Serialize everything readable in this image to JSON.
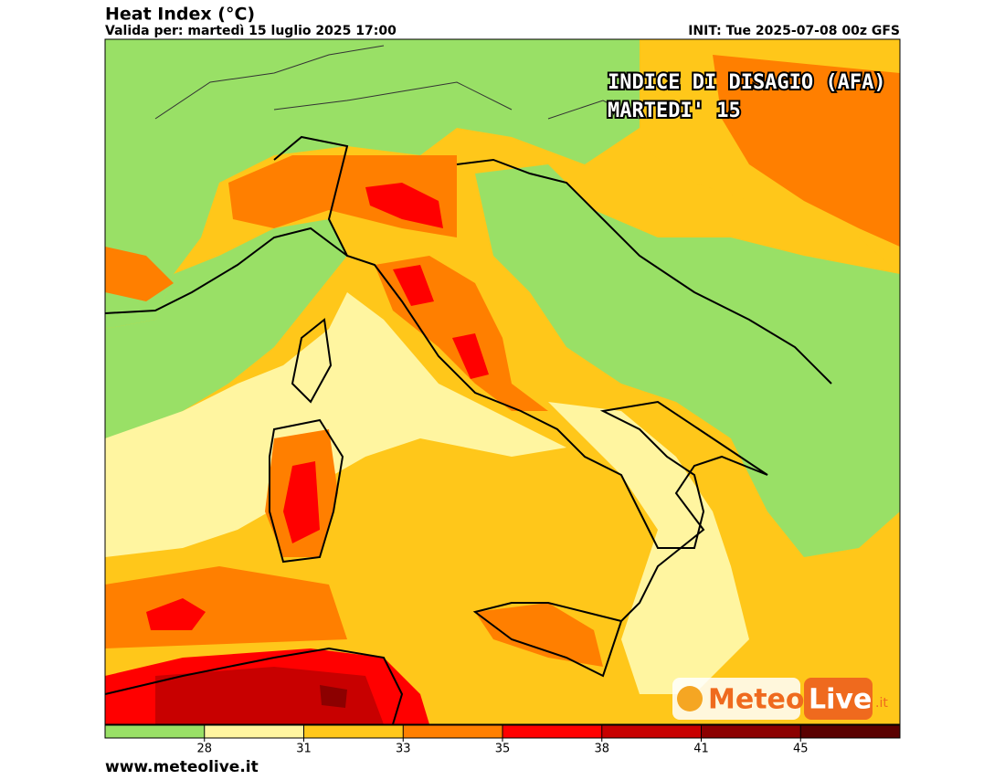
{
  "header": {
    "title": "Heat Index (°C)",
    "valid": "Valida per: martedì 15 luglio 2025 17:00",
    "init": "INIT: Tue 2025-07-08 00z GFS"
  },
  "overlay": {
    "line1": "INDICE DI DISAGIO (AFA)",
    "line2": "MARTEDI' 15"
  },
  "colorbar": {
    "colors": [
      "#99e066",
      "#fff5a0",
      "#ffc71a",
      "#ff7f00",
      "#ff0000",
      "#c80000",
      "#8c0000",
      "#5a0000"
    ],
    "ticks": [
      28,
      31,
      33,
      35,
      38,
      41,
      45
    ]
  },
  "logo": {
    "brand1": "Meteo",
    "brand2": "Live",
    "suffix": ".it"
  },
  "footer": {
    "url": "www.meteolive.it"
  }
}
